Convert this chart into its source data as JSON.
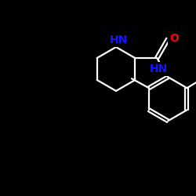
{
  "background_color": "#000000",
  "bond_color": "#ffffff",
  "N_color": "#1414ff",
  "O_color": "#ff0000",
  "label_HN_top": "HN",
  "label_HN_bottom": "HN",
  "label_O": "O",
  "figsize": [
    2.5,
    2.5
  ],
  "dpi": 100,
  "line_width": 1.6,
  "font_size": 10,
  "font_weight": "bold"
}
